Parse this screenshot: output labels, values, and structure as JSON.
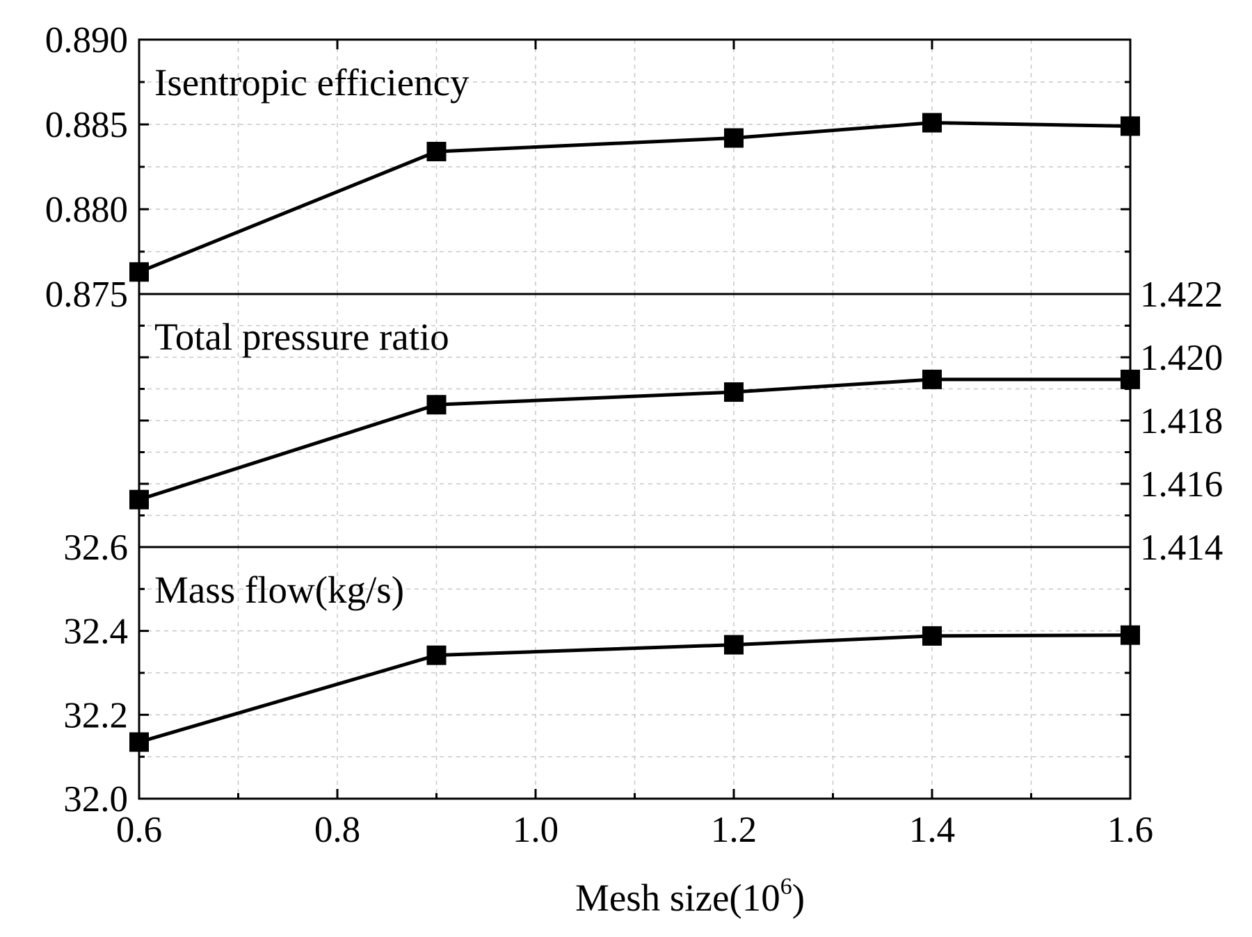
{
  "chart_data": {
    "type": "line",
    "xlabel_main": "Mesh size(10",
    "xlabel_sup": "6",
    "xlabel_tail": ")",
    "xlim": [
      0.6,
      1.6
    ],
    "xticks": [
      "0.6",
      "0.8",
      "1.0",
      "1.2",
      "1.4",
      "1.6"
    ],
    "x": [
      0.6,
      0.9,
      1.2,
      1.4,
      1.6
    ],
    "grid": true,
    "panels": [
      {
        "title": "Isentropic efficiency",
        "axis_side": "left",
        "ylim": [
          0.875,
          0.89
        ],
        "yticks": [
          "0.875",
          "0.880",
          "0.885",
          "0.890"
        ],
        "y": [
          0.8763,
          0.8834,
          0.8842,
          0.8851,
          0.8849
        ]
      },
      {
        "title": "Total pressure ratio",
        "axis_side": "right",
        "ylim": [
          1.414,
          1.422
        ],
        "yticks": [
          "1.414",
          "1.416",
          "1.418",
          "1.420",
          "1.422"
        ],
        "y": [
          1.4155,
          1.4185,
          1.4189,
          1.4193,
          1.4193
        ]
      },
      {
        "title": "Mass flow(kg/s)",
        "axis_side": "left",
        "ylim": [
          32.0,
          32.6
        ],
        "yticks": [
          "32.0",
          "32.2",
          "32.4",
          "32.6"
        ],
        "y": [
          32.135,
          32.342,
          32.367,
          32.388,
          32.39
        ]
      }
    ]
  }
}
